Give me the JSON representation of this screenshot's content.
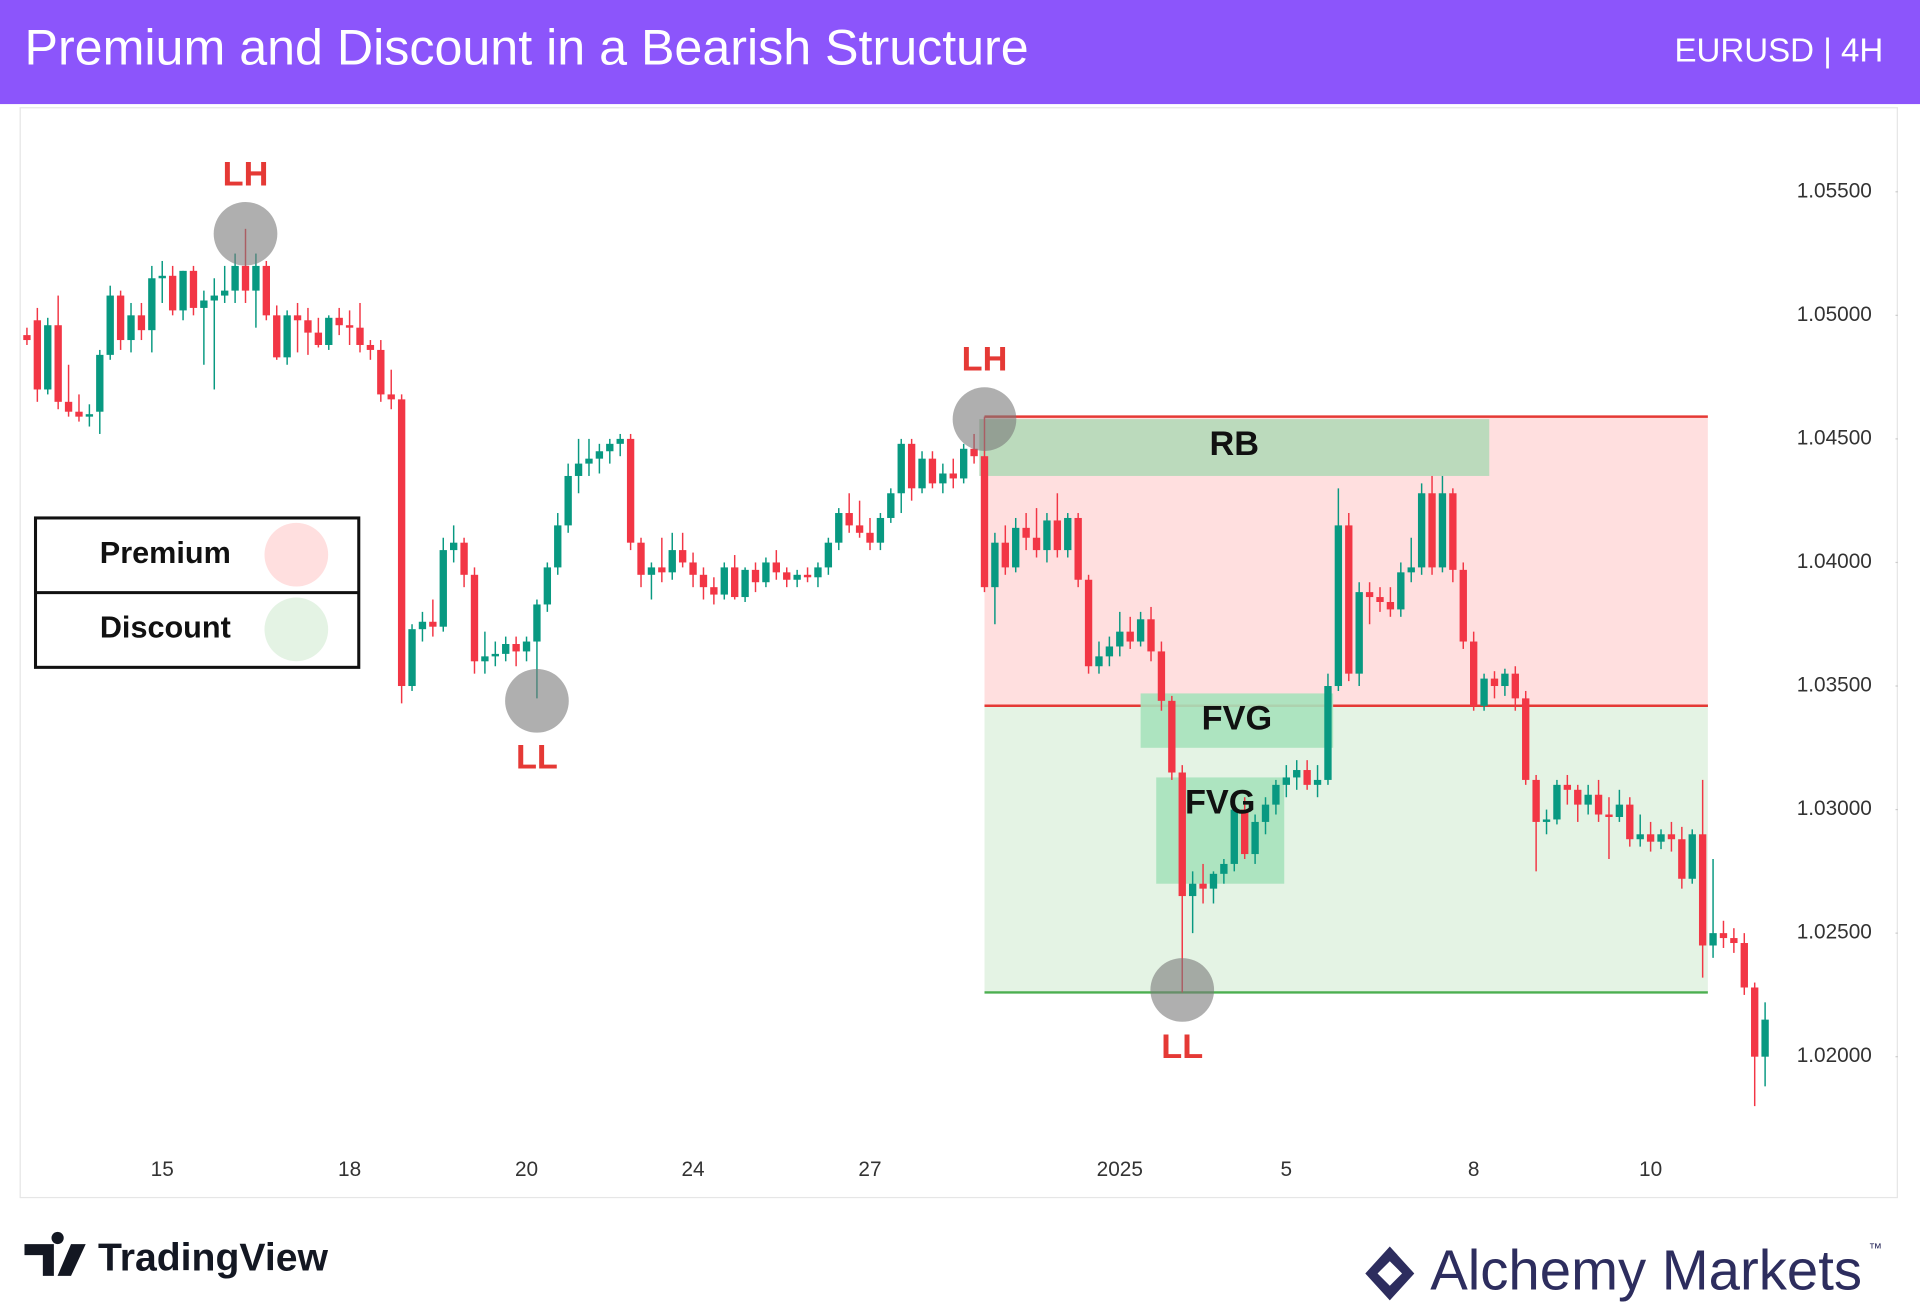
{
  "chart_data": {
    "type": "candlestick",
    "title": "Premium and Discount in a Bearish Structure",
    "subtitle": "EURUSD | 4H",
    "colors": {
      "up": "#089981",
      "down": "#f23645"
    },
    "ylim": [
      1.0143,
      1.0584
    ],
    "yticks": [
      {
        "value": 1.055,
        "label": "1.05500"
      },
      {
        "value": 1.05,
        "label": "1.05000"
      },
      {
        "value": 1.045,
        "label": "1.04500"
      },
      {
        "value": 1.04,
        "label": "1.04000"
      },
      {
        "value": 1.035,
        "label": "1.03500"
      },
      {
        "value": 1.03,
        "label": "1.03000"
      },
      {
        "value": 1.025,
        "label": "1.02500"
      },
      {
        "value": 1.02,
        "label": "1.02000"
      }
    ],
    "categories": [
      null,
      null,
      null,
      null,
      null,
      null,
      null,
      null,
      null,
      null,
      null,
      null,
      null,
      "15",
      null,
      null,
      null,
      null,
      null,
      null,
      null,
      null,
      null,
      null,
      null,
      null,
      null,
      null,
      null,
      null,
      null,
      "18",
      null,
      null,
      null,
      null,
      null,
      null,
      null,
      null,
      null,
      null,
      null,
      null,
      null,
      null,
      null,
      null,
      "20",
      null,
      null,
      null,
      null,
      null,
      null,
      null,
      null,
      null,
      null,
      null,
      null,
      null,
      null,
      null,
      "24",
      null,
      null,
      null,
      null,
      null,
      null,
      null,
      null,
      null,
      null,
      null,
      null,
      null,
      null,
      null,
      null,
      "27",
      null,
      null,
      null,
      null,
      null,
      null,
      null,
      null,
      null,
      null,
      null,
      null,
      null,
      null,
      null,
      null,
      null,
      null,
      null,
      null,
      null,
      null,
      null,
      "2025",
      null,
      null,
      null,
      null,
      null,
      null,
      null,
      null,
      null,
      null,
      null,
      null,
      null,
      null,
      null,
      "5",
      null,
      null,
      null,
      null,
      null,
      null,
      null,
      null,
      null,
      null,
      null,
      null,
      null,
      null,
      null,
      null,
      null,
      "8",
      null,
      null,
      null,
      null,
      null,
      null,
      null,
      null,
      null,
      null,
      null,
      null,
      null,
      null,
      null,
      null,
      "10",
      null,
      null,
      null,
      null,
      null,
      null,
      null,
      null,
      null,
      null,
      null
    ],
    "candles": [
      [
        1.0492,
        1.0495,
        1.0488,
        1.049
      ],
      [
        1.0498,
        1.0503,
        1.0465,
        1.047
      ],
      [
        1.047,
        1.0499,
        1.0468,
        1.0496
      ],
      [
        1.0496,
        1.0508,
        1.0462,
        1.0465
      ],
      [
        1.0465,
        1.048,
        1.0459,
        1.0461
      ],
      [
        1.0461,
        1.0468,
        1.0457,
        1.0459
      ],
      [
        1.0459,
        1.0464,
        1.0455,
        1.046
      ],
      [
        1.0461,
        1.0486,
        1.0452,
        1.0484
      ],
      [
        1.0484,
        1.0512,
        1.0482,
        1.0508
      ],
      [
        1.0508,
        1.051,
        1.0486,
        1.049
      ],
      [
        1.049,
        1.0505,
        1.0485,
        1.05
      ],
      [
        1.05,
        1.0505,
        1.049,
        1.0494
      ],
      [
        1.0494,
        1.052,
        1.0485,
        1.0515
      ],
      [
        1.0515,
        1.0522,
        1.0505,
        1.0516
      ],
      [
        1.0516,
        1.052,
        1.05,
        1.0502
      ],
      [
        1.0502,
        1.0518,
        1.0498,
        1.0518
      ],
      [
        1.0518,
        1.052,
        1.05,
        1.0503
      ],
      [
        1.0503,
        1.051,
        1.048,
        1.0506
      ],
      [
        1.0506,
        1.0515,
        1.047,
        1.0508
      ],
      [
        1.0508,
        1.052,
        1.0505,
        1.051
      ],
      [
        1.051,
        1.0525,
        1.0505,
        1.052
      ],
      [
        1.052,
        1.0535,
        1.0505,
        1.051
      ],
      [
        1.051,
        1.0525,
        1.0495,
        1.052
      ],
      [
        1.052,
        1.0522,
        1.0498,
        1.05
      ],
      [
        1.05,
        1.0504,
        1.0482,
        1.0483
      ],
      [
        1.0483,
        1.0502,
        1.048,
        1.05
      ],
      [
        1.05,
        1.0505,
        1.0485,
        1.0498
      ],
      [
        1.0498,
        1.0503,
        1.0484,
        1.0493
      ],
      [
        1.0493,
        1.0499,
        1.0487,
        1.0488
      ],
      [
        1.0488,
        1.05,
        1.0486,
        1.0499
      ],
      [
        1.0499,
        1.0503,
        1.0492,
        1.0496
      ],
      [
        1.0496,
        1.0502,
        1.0488,
        1.0495
      ],
      [
        1.0495,
        1.0505,
        1.0485,
        1.0488
      ],
      [
        1.0488,
        1.049,
        1.0482,
        1.0486
      ],
      [
        1.0486,
        1.049,
        1.0465,
        1.0468
      ],
      [
        1.0468,
        1.0478,
        1.0462,
        1.0466
      ],
      [
        1.0466,
        1.0468,
        1.0343,
        1.035
      ],
      [
        1.035,
        1.0375,
        1.0348,
        1.0373
      ],
      [
        1.0373,
        1.038,
        1.0368,
        1.0376
      ],
      [
        1.0376,
        1.0385,
        1.037,
        1.0374
      ],
      [
        1.0374,
        1.041,
        1.0372,
        1.0405
      ],
      [
        1.0405,
        1.0415,
        1.04,
        1.0408
      ],
      [
        1.0408,
        1.041,
        1.039,
        1.0395
      ],
      [
        1.0395,
        1.0398,
        1.0355,
        1.036
      ],
      [
        1.036,
        1.0372,
        1.0355,
        1.0362
      ],
      [
        1.0362,
        1.0368,
        1.0358,
        1.0363
      ],
      [
        1.0363,
        1.037,
        1.036,
        1.0367
      ],
      [
        1.0367,
        1.037,
        1.0358,
        1.0364
      ],
      [
        1.0364,
        1.037,
        1.036,
        1.0368
      ],
      [
        1.0368,
        1.0385,
        1.0345,
        1.0383
      ],
      [
        1.0383,
        1.04,
        1.038,
        1.0398
      ],
      [
        1.0398,
        1.042,
        1.0395,
        1.0415
      ],
      [
        1.0415,
        1.044,
        1.0412,
        1.0435
      ],
      [
        1.0435,
        1.045,
        1.0428,
        1.044
      ],
      [
        1.044,
        1.045,
        1.0435,
        1.0442
      ],
      [
        1.0442,
        1.0448,
        1.0436,
        1.0445
      ],
      [
        1.0445,
        1.045,
        1.044,
        1.0448
      ],
      [
        1.0448,
        1.0452,
        1.0443,
        1.045
      ],
      [
        1.045,
        1.0452,
        1.0405,
        1.0408
      ],
      [
        1.0408,
        1.041,
        1.039,
        1.0395
      ],
      [
        1.0395,
        1.04,
        1.0385,
        1.0398
      ],
      [
        1.0398,
        1.041,
        1.0392,
        1.0396
      ],
      [
        1.0396,
        1.0412,
        1.0393,
        1.0405
      ],
      [
        1.0405,
        1.0412,
        1.0398,
        1.04
      ],
      [
        1.04,
        1.0404,
        1.039,
        1.0395
      ],
      [
        1.0395,
        1.0398,
        1.0385,
        1.039
      ],
      [
        1.039,
        1.0394,
        1.0383,
        1.0387
      ],
      [
        1.0387,
        1.04,
        1.0385,
        1.0398
      ],
      [
        1.0398,
        1.0403,
        1.0385,
        1.0386
      ],
      [
        1.0386,
        1.0398,
        1.0384,
        1.0397
      ],
      [
        1.0397,
        1.04,
        1.0388,
        1.0392
      ],
      [
        1.0392,
        1.0402,
        1.039,
        1.04
      ],
      [
        1.04,
        1.0405,
        1.0393,
        1.0396
      ],
      [
        1.0396,
        1.0398,
        1.039,
        1.0393
      ],
      [
        1.0393,
        1.0397,
        1.039,
        1.0395
      ],
      [
        1.0395,
        1.0398,
        1.0392,
        1.0394
      ],
      [
        1.0394,
        1.04,
        1.039,
        1.0398
      ],
      [
        1.0398,
        1.041,
        1.0395,
        1.0408
      ],
      [
        1.0408,
        1.0422,
        1.0405,
        1.042
      ],
      [
        1.042,
        1.0428,
        1.0412,
        1.0415
      ],
      [
        1.0415,
        1.0425,
        1.041,
        1.0412
      ],
      [
        1.0412,
        1.0418,
        1.0405,
        1.0408
      ],
      [
        1.0408,
        1.042,
        1.0405,
        1.0418
      ],
      [
        1.0418,
        1.043,
        1.0416,
        1.0428
      ],
      [
        1.0428,
        1.045,
        1.042,
        1.0448
      ],
      [
        1.0448,
        1.045,
        1.0425,
        1.043
      ],
      [
        1.043,
        1.0445,
        1.0428,
        1.0442
      ],
      [
        1.0442,
        1.0445,
        1.043,
        1.0432
      ],
      [
        1.0432,
        1.044,
        1.0428,
        1.0436
      ],
      [
        1.0436,
        1.0442,
        1.043,
        1.0434
      ],
      [
        1.0434,
        1.0448,
        1.0432,
        1.0446
      ],
      [
        1.0446,
        1.0452,
        1.044,
        1.0443
      ],
      [
        1.0443,
        1.0459,
        1.0388,
        1.039
      ],
      [
        1.039,
        1.0412,
        1.0375,
        1.0408
      ],
      [
        1.0408,
        1.0415,
        1.0395,
        1.0398
      ],
      [
        1.0398,
        1.0418,
        1.0396,
        1.0414
      ],
      [
        1.0414,
        1.042,
        1.0405,
        1.041
      ],
      [
        1.041,
        1.0422,
        1.0402,
        1.0405
      ],
      [
        1.0405,
        1.042,
        1.04,
        1.0417
      ],
      [
        1.0417,
        1.0428,
        1.0402,
        1.0405
      ],
      [
        1.0405,
        1.042,
        1.0402,
        1.0418
      ],
      [
        1.0418,
        1.042,
        1.039,
        1.0393
      ],
      [
        1.0393,
        1.0395,
        1.0355,
        1.0358
      ],
      [
        1.0358,
        1.0368,
        1.0355,
        1.0362
      ],
      [
        1.0362,
        1.037,
        1.0358,
        1.0366
      ],
      [
        1.0366,
        1.038,
        1.0362,
        1.0372
      ],
      [
        1.0372,
        1.0378,
        1.0365,
        1.0368
      ],
      [
        1.0368,
        1.038,
        1.0366,
        1.0377
      ],
      [
        1.0377,
        1.0382,
        1.036,
        1.0364
      ],
      [
        1.0364,
        1.0368,
        1.034,
        1.0344
      ],
      [
        1.0344,
        1.0346,
        1.0312,
        1.0315
      ],
      [
        1.0315,
        1.0318,
        1.0226,
        1.0265
      ],
      [
        1.0265,
        1.0275,
        1.025,
        1.027
      ],
      [
        1.027,
        1.0278,
        1.0262,
        1.0268
      ],
      [
        1.0268,
        1.0275,
        1.0262,
        1.0274
      ],
      [
        1.0274,
        1.028,
        1.027,
        1.0278
      ],
      [
        1.0278,
        1.0302,
        1.0275,
        1.03
      ],
      [
        1.03,
        1.0305,
        1.028,
        1.0282
      ],
      [
        1.0282,
        1.0298,
        1.0278,
        1.0295
      ],
      [
        1.0295,
        1.0305,
        1.029,
        1.0302
      ],
      [
        1.0302,
        1.0312,
        1.0298,
        1.031
      ],
      [
        1.031,
        1.0318,
        1.0305,
        1.0313
      ],
      [
        1.0313,
        1.032,
        1.0308,
        1.0316
      ],
      [
        1.0316,
        1.032,
        1.0308,
        1.031
      ],
      [
        1.031,
        1.0318,
        1.0305,
        1.0312
      ],
      [
        1.0312,
        1.0355,
        1.031,
        1.035
      ],
      [
        1.035,
        1.043,
        1.0348,
        1.0415
      ],
      [
        1.0415,
        1.042,
        1.0352,
        1.0355
      ],
      [
        1.0355,
        1.0392,
        1.035,
        1.0388
      ],
      [
        1.0388,
        1.0392,
        1.0375,
        1.0386
      ],
      [
        1.0386,
        1.039,
        1.038,
        1.0384
      ],
      [
        1.0384,
        1.039,
        1.0378,
        1.0381
      ],
      [
        1.0381,
        1.04,
        1.0378,
        1.0396
      ],
      [
        1.0396,
        1.041,
        1.0392,
        1.0398
      ],
      [
        1.0398,
        1.0432,
        1.0395,
        1.0428
      ],
      [
        1.0428,
        1.0435,
        1.0395,
        1.0398
      ],
      [
        1.0398,
        1.0435,
        1.0396,
        1.0428
      ],
      [
        1.0428,
        1.043,
        1.0392,
        1.0397
      ],
      [
        1.0397,
        1.04,
        1.0365,
        1.0368
      ],
      [
        1.0368,
        1.0372,
        1.034,
        1.0342
      ],
      [
        1.0342,
        1.0355,
        1.034,
        1.0353
      ],
      [
        1.0353,
        1.0356,
        1.0345,
        1.035
      ],
      [
        1.035,
        1.0357,
        1.0346,
        1.0355
      ],
      [
        1.0355,
        1.0358,
        1.034,
        1.0345
      ],
      [
        1.0345,
        1.0348,
        1.031,
        1.0312
      ],
      [
        1.0312,
        1.0314,
        1.0275,
        1.0295
      ],
      [
        1.0295,
        1.03,
        1.029,
        1.0296
      ],
      [
        1.0296,
        1.0312,
        1.0294,
        1.031
      ],
      [
        1.031,
        1.0314,
        1.0302,
        1.0308
      ],
      [
        1.0308,
        1.031,
        1.0295,
        1.0302
      ],
      [
        1.0302,
        1.031,
        1.0298,
        1.0306
      ],
      [
        1.0306,
        1.0312,
        1.0295,
        1.0298
      ],
      [
        1.0298,
        1.0305,
        1.028,
        1.0297
      ],
      [
        1.0297,
        1.0308,
        1.0295,
        1.0302
      ],
      [
        1.0302,
        1.0305,
        1.0285,
        1.0288
      ],
      [
        1.0288,
        1.0298,
        1.0285,
        1.029
      ],
      [
        1.029,
        1.0295,
        1.0283,
        1.0287
      ],
      [
        1.0287,
        1.0292,
        1.0284,
        1.029
      ],
      [
        1.029,
        1.0295,
        1.0283,
        1.0288
      ],
      [
        1.0288,
        1.0293,
        1.0268,
        1.0272
      ],
      [
        1.0272,
        1.0292,
        1.027,
        1.029
      ],
      [
        1.029,
        1.0312,
        1.0232,
        1.0245
      ],
      [
        1.0245,
        1.028,
        1.024,
        1.025
      ],
      [
        1.025,
        1.0255,
        1.0244,
        1.0248
      ],
      [
        1.0248,
        1.0252,
        1.0242,
        1.0246
      ],
      [
        1.0246,
        1.025,
        1.0225,
        1.0228
      ],
      [
        1.0228,
        1.023,
        1.018,
        1.02
      ],
      [
        1.02,
        1.0222,
        1.0188,
        1.0215
      ]
    ],
    "zones": [
      {
        "name": "Discount",
        "color": "#e4f3e4",
        "line_color": "#4caf50",
        "top": 1.0342,
        "bottom": 1.0226,
        "start": 92,
        "end": 161.5
      },
      {
        "name": "Premium",
        "color": "#ffdfdf",
        "line_color": "#e53935",
        "top": 1.0459,
        "bottom": 1.0342,
        "start": 92,
        "end": 161.5
      }
    ],
    "boxes": [
      {
        "label": "RB",
        "color": "#b4d9b8",
        "top": 1.0458,
        "bottom": 1.0435,
        "start": 91.5,
        "end": 140.5
      },
      {
        "label": "FVG",
        "color": "#a6e2bb",
        "top": 1.0347,
        "bottom": 1.0325,
        "start": 107,
        "end": 125.5
      },
      {
        "label": "FVG",
        "color": "#a6e2bb",
        "top": 1.0313,
        "bottom": 1.027,
        "start": 108.5,
        "end": 120.8
      }
    ],
    "swings": [
      {
        "label": "LH",
        "index": 21,
        "price": 1.0533,
        "position": "above"
      },
      {
        "label": "LL",
        "index": 49,
        "price": 1.0344,
        "position": "below"
      },
      {
        "label": "LH",
        "index": 92,
        "price": 1.0458,
        "position": "above"
      },
      {
        "label": "LL",
        "index": 111,
        "price": 1.0227,
        "position": "below"
      }
    ]
  },
  "footer": {
    "left": "TradingView",
    "right": "Alchemy Markets",
    "trademark": "™"
  }
}
